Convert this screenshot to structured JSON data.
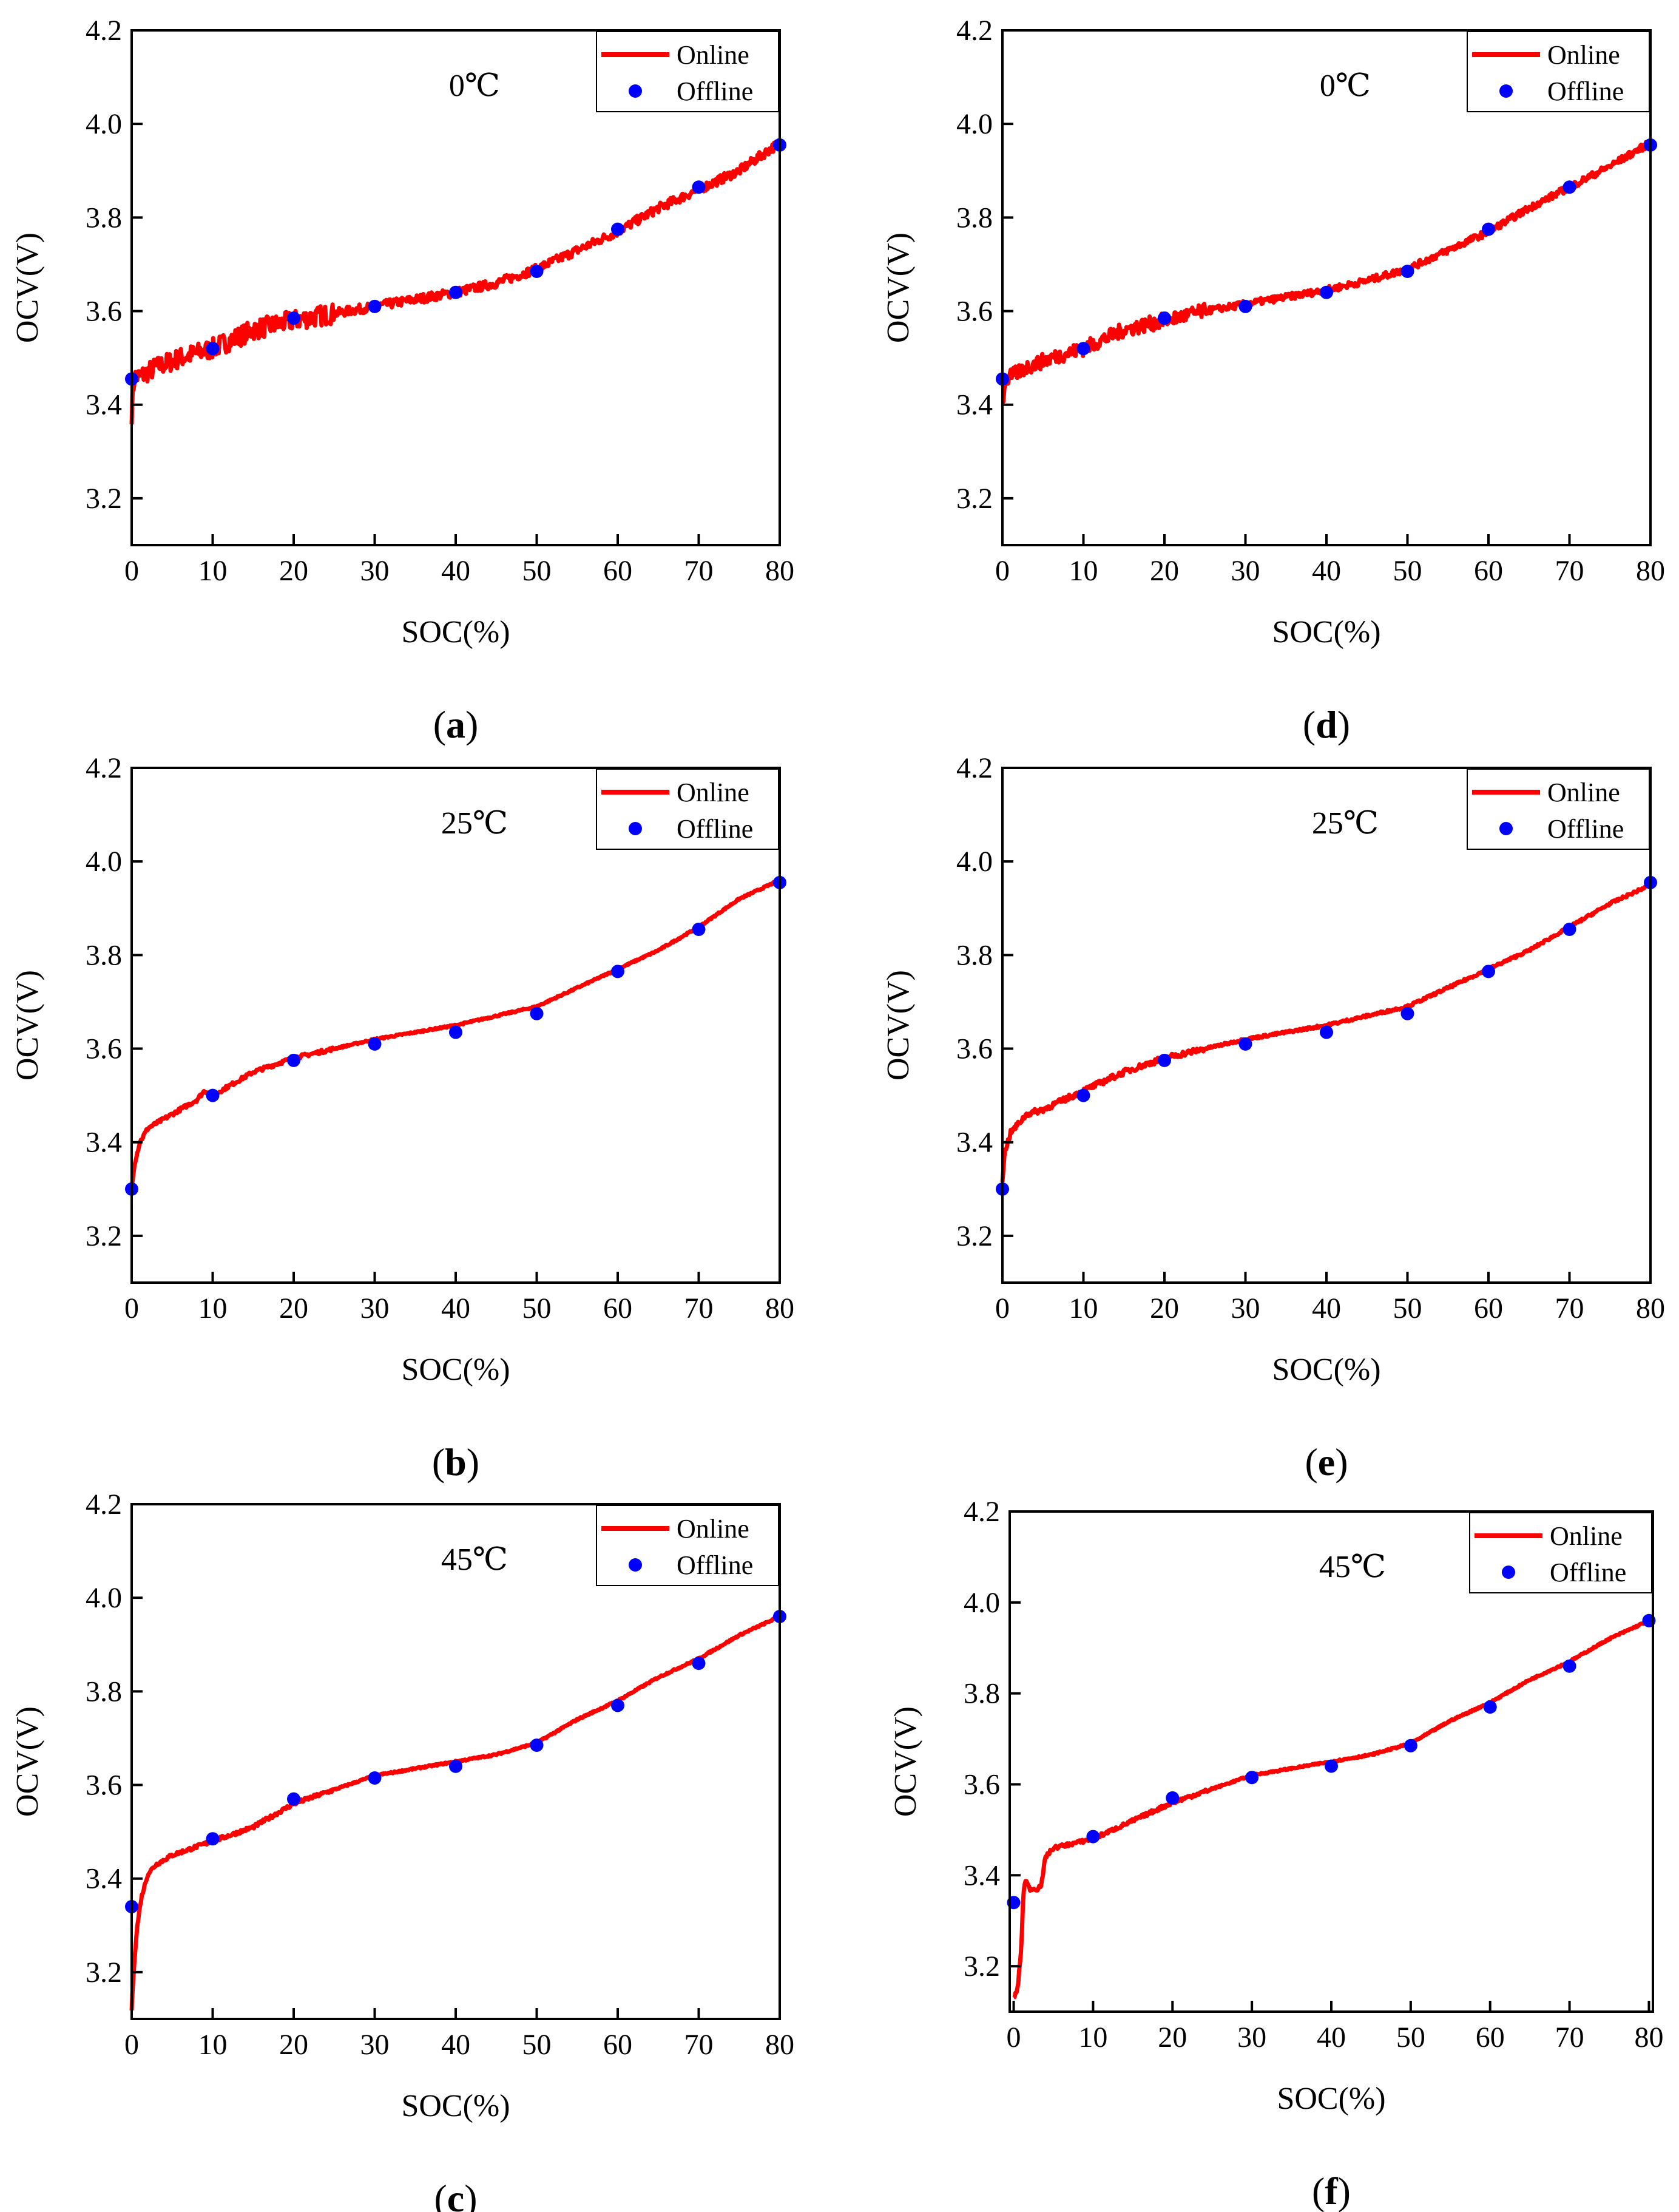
{
  "figure": {
    "colors": {
      "online": "#ff0000",
      "offline": "#0000ff",
      "axis": "#000000"
    }
  },
  "chart_data": [
    {
      "panel": "a",
      "panel_label": "(a)",
      "type": "line",
      "temperature_label": "0℃",
      "xlabel": "SOC(%)",
      "ylabel": "OCV(V)",
      "xlim": [
        0,
        80
      ],
      "ylim": [
        3.1,
        4.2
      ],
      "xticks": [
        0,
        10,
        20,
        30,
        40,
        50,
        60,
        70,
        80
      ],
      "yticks": [
        3.2,
        3.4,
        3.6,
        3.8,
        4.0,
        4.2
      ],
      "legend_position": "top-right",
      "noise": 0.022,
      "series": [
        {
          "name": "Online",
          "kind": "line",
          "x": [
            0,
            0.3,
            1,
            3,
            6,
            10,
            15,
            20,
            25,
            30,
            35,
            40,
            45,
            50,
            55,
            60,
            65,
            70,
            75,
            80
          ],
          "y": [
            3.38,
            3.46,
            3.46,
            3.48,
            3.5,
            3.52,
            3.56,
            3.58,
            3.595,
            3.61,
            3.625,
            3.64,
            3.66,
            3.69,
            3.73,
            3.77,
            3.82,
            3.86,
            3.9,
            3.96
          ]
        },
        {
          "name": "Offline",
          "kind": "scatter",
          "x": [
            0,
            10,
            20,
            30,
            40,
            50,
            60,
            70,
            80
          ],
          "y": [
            3.455,
            3.52,
            3.585,
            3.61,
            3.64,
            3.685,
            3.775,
            3.865,
            3.955
          ]
        }
      ]
    },
    {
      "panel": "b",
      "panel_label": "(b)",
      "type": "line",
      "temperature_label": "25℃",
      "xlabel": "SOC(%)",
      "ylabel": "OCV(V)",
      "xlim": [
        0,
        80
      ],
      "ylim": [
        3.1,
        4.2
      ],
      "xticks": [
        0,
        10,
        20,
        30,
        40,
        50,
        60,
        70,
        80
      ],
      "yticks": [
        3.2,
        3.4,
        3.6,
        3.8,
        4.0,
        4.2
      ],
      "legend_position": "top-right",
      "noise": 0.004,
      "series": [
        {
          "name": "Online",
          "kind": "line",
          "x": [
            0,
            0.3,
            1,
            2,
            5,
            8,
            9,
            10,
            15,
            20,
            25,
            30,
            35,
            40,
            45,
            50,
            55,
            60,
            65,
            70,
            75,
            80
          ],
          "y": [
            3.3,
            3.35,
            3.4,
            3.43,
            3.46,
            3.49,
            3.51,
            3.5,
            3.55,
            3.58,
            3.6,
            3.62,
            3.635,
            3.65,
            3.67,
            3.69,
            3.73,
            3.77,
            3.81,
            3.86,
            3.92,
            3.96
          ]
        },
        {
          "name": "Offline",
          "kind": "scatter",
          "x": [
            0,
            10,
            20,
            30,
            40,
            50,
            60,
            70,
            80
          ],
          "y": [
            3.3,
            3.5,
            3.575,
            3.61,
            3.635,
            3.675,
            3.765,
            3.855,
            3.955
          ]
        }
      ]
    },
    {
      "panel": "c",
      "panel_label": "(c)",
      "type": "line",
      "temperature_label": "45℃",
      "xlabel": "SOC(%)",
      "ylabel": "OCV(V)",
      "xlim": [
        0,
        80
      ],
      "ylim": [
        3.1,
        4.2
      ],
      "xticks": [
        0,
        10,
        20,
        30,
        40,
        50,
        60,
        70,
        80
      ],
      "yticks": [
        3.2,
        3.4,
        3.6,
        3.8,
        4.0,
        4.2
      ],
      "legend_position": "top-right",
      "noise": 0.004,
      "series": [
        {
          "name": "Online",
          "kind": "line",
          "x": [
            0,
            0.3,
            0.7,
            1.2,
            2,
            3,
            5,
            10,
            15,
            20,
            25,
            30,
            35,
            40,
            45,
            50,
            55,
            60,
            65,
            70,
            75,
            80
          ],
          "y": [
            3.12,
            3.22,
            3.3,
            3.36,
            3.41,
            3.43,
            3.45,
            3.48,
            3.51,
            3.56,
            3.59,
            3.62,
            3.635,
            3.65,
            3.665,
            3.69,
            3.74,
            3.78,
            3.83,
            3.87,
            3.92,
            3.96
          ]
        },
        {
          "name": "Offline",
          "kind": "scatter",
          "x": [
            0,
            10,
            20,
            30,
            40,
            50,
            60,
            70,
            80
          ],
          "y": [
            3.34,
            3.485,
            3.57,
            3.615,
            3.64,
            3.685,
            3.77,
            3.86,
            3.96
          ]
        }
      ]
    },
    {
      "panel": "d",
      "panel_label": "(d)",
      "type": "line",
      "temperature_label": "0℃",
      "xlabel": "SOC(%)",
      "ylabel": "OCV(V)",
      "xlim": [
        0,
        80
      ],
      "ylim": [
        3.1,
        4.2
      ],
      "xticks": [
        0,
        10,
        20,
        30,
        40,
        50,
        60,
        70,
        80
      ],
      "yticks": [
        3.2,
        3.4,
        3.6,
        3.8,
        4.0,
        4.2
      ],
      "legend_position": "top-right",
      "noise": 0.016,
      "series": [
        {
          "name": "Online",
          "kind": "line",
          "x": [
            0,
            0.3,
            1,
            3,
            6,
            10,
            15,
            20,
            25,
            30,
            35,
            40,
            45,
            50,
            55,
            60,
            65,
            70,
            75,
            80
          ],
          "y": [
            3.4,
            3.45,
            3.46,
            3.48,
            3.5,
            3.52,
            3.56,
            3.58,
            3.6,
            3.615,
            3.63,
            3.645,
            3.665,
            3.69,
            3.73,
            3.77,
            3.82,
            3.865,
            3.91,
            3.96
          ]
        },
        {
          "name": "Offline",
          "kind": "scatter",
          "x": [
            0,
            10,
            20,
            30,
            40,
            50,
            60,
            70,
            80
          ],
          "y": [
            3.455,
            3.52,
            3.585,
            3.61,
            3.64,
            3.685,
            3.775,
            3.865,
            3.955
          ]
        }
      ]
    },
    {
      "panel": "e",
      "panel_label": "(e)",
      "type": "line",
      "temperature_label": "25℃",
      "xlabel": "SOC(%)",
      "ylabel": "OCV(V)",
      "xlim": [
        0,
        80
      ],
      "ylim": [
        3.1,
        4.2
      ],
      "xticks": [
        0,
        10,
        20,
        30,
        40,
        50,
        60,
        70,
        80
      ],
      "yticks": [
        3.2,
        3.4,
        3.6,
        3.8,
        4.0,
        4.2
      ],
      "legend_position": "top-right",
      "noise": 0.006,
      "series": [
        {
          "name": "Online",
          "kind": "line",
          "x": [
            0,
            0.3,
            1,
            2,
            3,
            5,
            10,
            15,
            20,
            25,
            30,
            35,
            40,
            45,
            50,
            55,
            60,
            65,
            70,
            75,
            80
          ],
          "y": [
            3.32,
            3.38,
            3.42,
            3.44,
            3.46,
            3.47,
            3.51,
            3.55,
            3.58,
            3.6,
            3.62,
            3.635,
            3.65,
            3.67,
            3.69,
            3.73,
            3.77,
            3.81,
            3.86,
            3.91,
            3.95
          ]
        },
        {
          "name": "Offline",
          "kind": "scatter",
          "x": [
            0,
            10,
            20,
            30,
            40,
            50,
            60,
            70,
            80
          ],
          "y": [
            3.3,
            3.5,
            3.575,
            3.61,
            3.635,
            3.675,
            3.765,
            3.855,
            3.955
          ]
        }
      ]
    },
    {
      "panel": "f",
      "panel_label": "(f)",
      "type": "line",
      "temperature_label": "45℃",
      "xlabel": "SOC(%)",
      "ylabel": "OCV(V)",
      "xlim": [
        -0.5,
        80.5
      ],
      "ylim": [
        3.1,
        4.2
      ],
      "xticks": [
        0,
        10,
        20,
        30,
        40,
        50,
        60,
        70,
        80
      ],
      "yticks": [
        3.2,
        3.4,
        3.6,
        3.8,
        4.0,
        4.2
      ],
      "legend_position": "top-right",
      "noise": 0.004,
      "series": [
        {
          "name": "Online",
          "kind": "line",
          "x": [
            0,
            0.5,
            1,
            1.2,
            1.5,
            2,
            3,
            3.5,
            4,
            5,
            10,
            15,
            20,
            25,
            30,
            35,
            40,
            45,
            50,
            55,
            60,
            65,
            70,
            75,
            80
          ],
          "y": [
            3.13,
            3.15,
            3.25,
            3.36,
            3.39,
            3.37,
            3.37,
            3.38,
            3.44,
            3.46,
            3.48,
            3.52,
            3.56,
            3.59,
            3.62,
            3.635,
            3.65,
            3.665,
            3.69,
            3.74,
            3.78,
            3.83,
            3.87,
            3.92,
            3.96
          ]
        },
        {
          "name": "Offline",
          "kind": "scatter",
          "x": [
            0,
            10,
            20,
            30,
            40,
            50,
            60,
            70,
            80
          ],
          "y": [
            3.34,
            3.485,
            3.57,
            3.615,
            3.64,
            3.685,
            3.77,
            3.86,
            3.96
          ]
        }
      ]
    }
  ]
}
